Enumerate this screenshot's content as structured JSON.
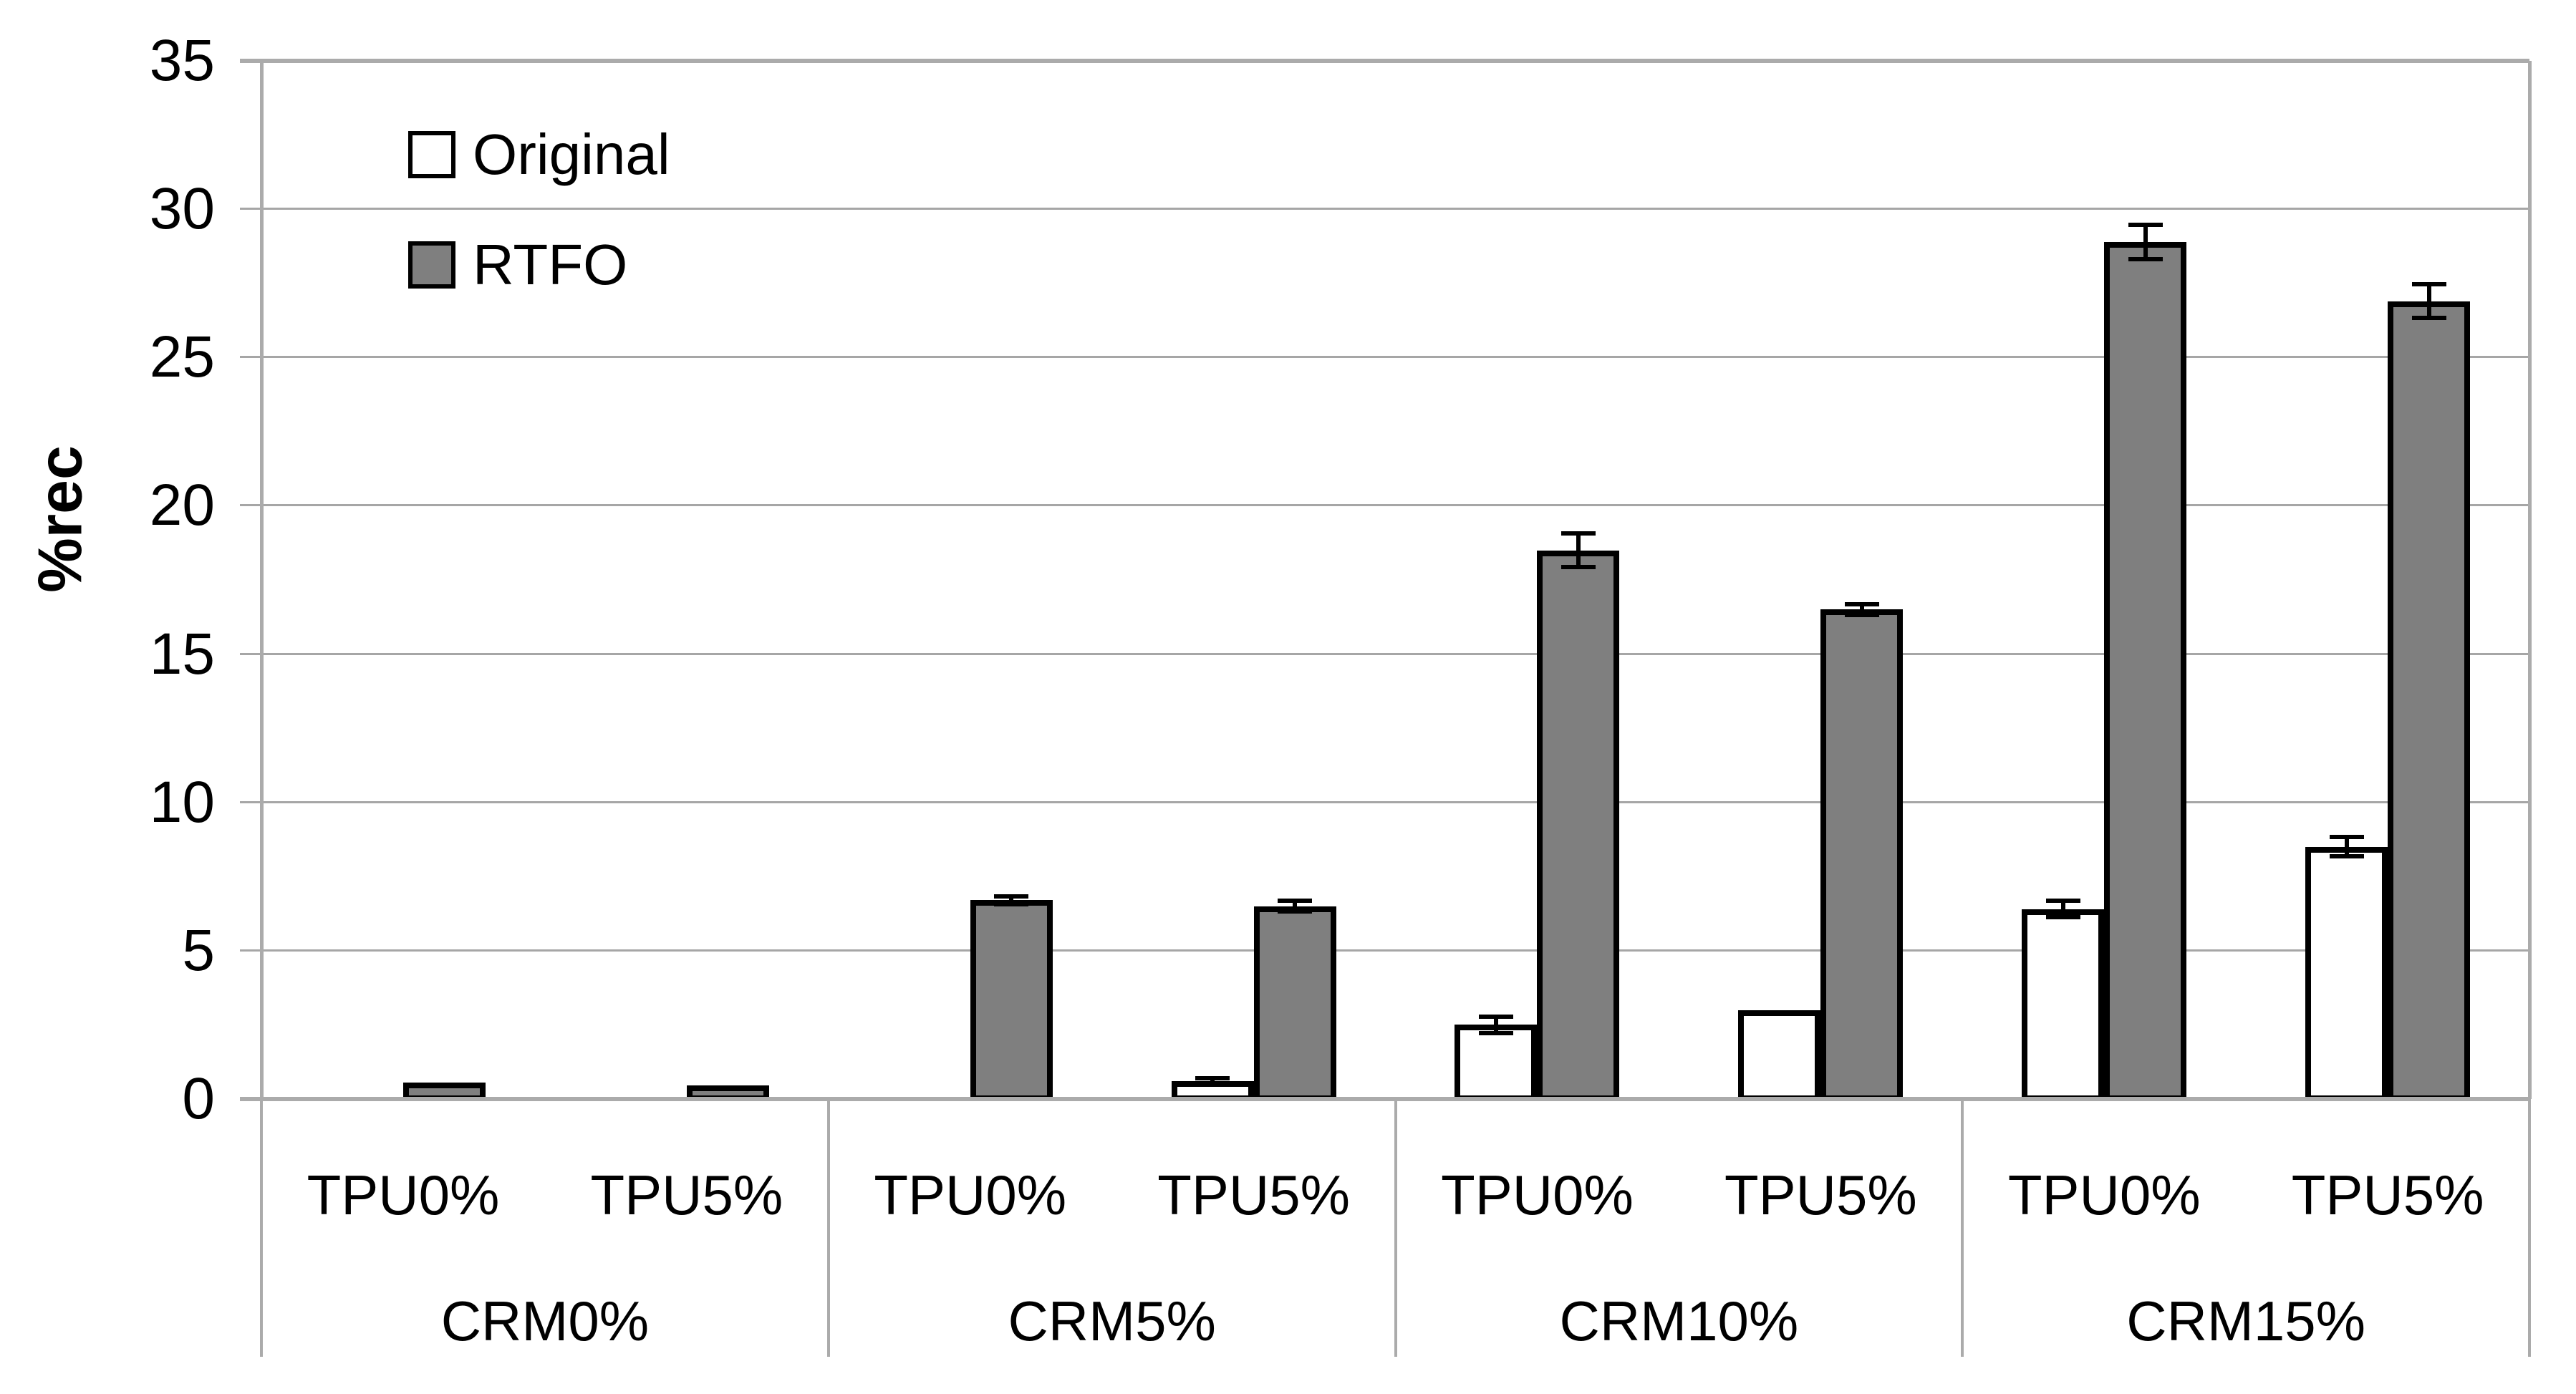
{
  "figure": {
    "background": "#FFFFFF",
    "text_color": "#000000",
    "frame_color": "#ABABAB",
    "gridline_color": "#A6A6A6",
    "bar_border_color": "#000000"
  },
  "chart_data": {
    "type": "bar",
    "title": "",
    "xlabel": "",
    "ylabel": "%rec",
    "ylim": [
      0,
      35
    ],
    "yticks": [
      0,
      5,
      10,
      15,
      20,
      25,
      30,
      35
    ],
    "grid": true,
    "legend_position": "inside-top-left",
    "group_labels": [
      "CRM0%",
      "CRM5%",
      "CRM10%",
      "CRM15%"
    ],
    "subgroup_labels": [
      "TPU0%",
      "TPU5%"
    ],
    "categories": [
      "CRM0% TPU0%",
      "CRM0% TPU5%",
      "CRM5% TPU0%",
      "CRM5% TPU5%",
      "CRM10% TPU0%",
      "CRM10% TPU5%",
      "CRM15% TPU0%",
      "CRM15% TPU5%"
    ],
    "series": [
      {
        "name": "Original",
        "color": "#FFFFFF",
        "border": "#000000",
        "values": [
          0,
          0,
          0,
          0.6,
          2.5,
          3.0,
          6.4,
          8.5
        ],
        "errors": [
          0,
          0,
          0,
          0.12,
          0.3,
          0,
          0.3,
          0.35
        ]
      },
      {
        "name": "RTFO",
        "color": "#7F7F7F",
        "border": "#000000",
        "values": [
          0.55,
          0.45,
          6.7,
          6.5,
          18.5,
          16.5,
          28.9,
          26.9
        ],
        "errors": [
          0,
          0,
          0.15,
          0.2,
          0.6,
          0.2,
          0.6,
          0.6
        ]
      }
    ]
  }
}
